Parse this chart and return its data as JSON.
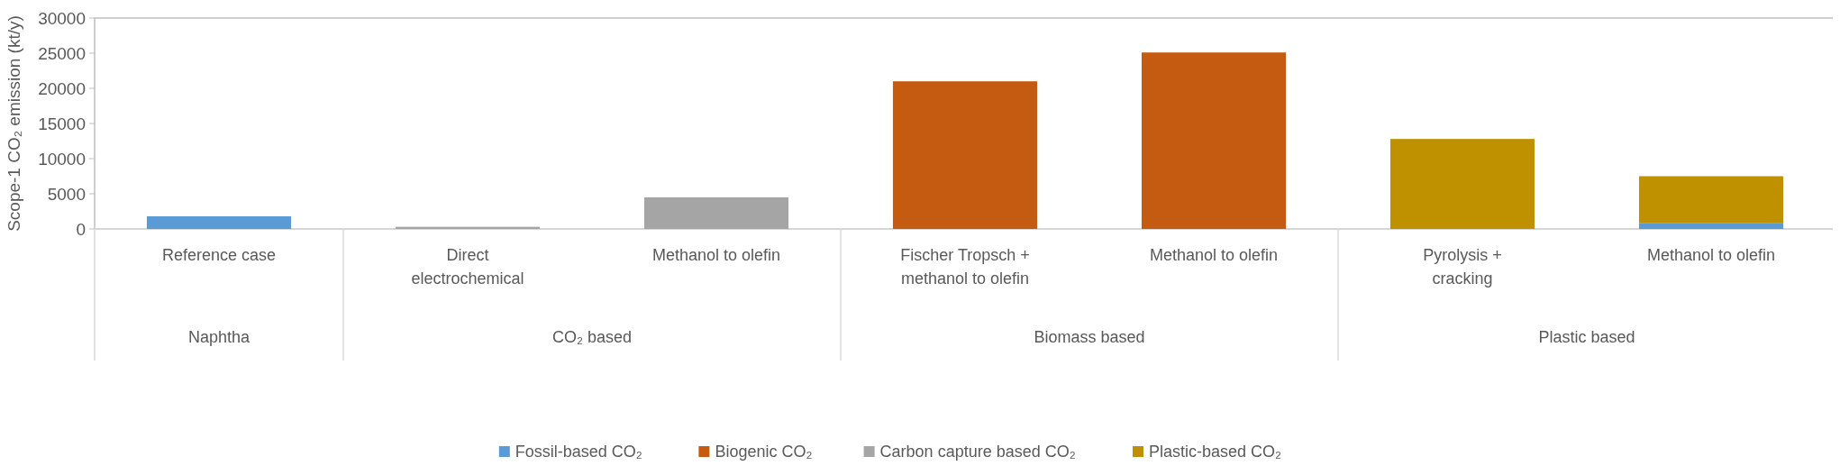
{
  "chart_data": {
    "type": "bar",
    "stacked": true,
    "ylabel": "Scope-1 CO₂ emission (kt/y)",
    "categories": [
      "Reference case",
      "Direct electrochemical",
      "Methanol to olefin",
      "Fischer Tropsch + methanol to olefin",
      "Methanol to olefin",
      "Pyrolysis + cracking",
      "Methanol to olefin"
    ],
    "series": [
      {
        "name": "Fossil-based CO₂",
        "color": "#5b9bd5",
        "values": [
          1800,
          null,
          null,
          null,
          null,
          null,
          800
        ]
      },
      {
        "name": "Biogenic CO₂",
        "color": "#c55a11",
        "values": [
          null,
          null,
          null,
          21000,
          25100,
          null,
          null
        ]
      },
      {
        "name": "Carbon capture based CO₂",
        "color": "#a5a5a5",
        "values": [
          null,
          300,
          4500,
          null,
          null,
          null,
          null
        ]
      },
      {
        "name": "Plastic-based CO₂",
        "color": "#bf9000",
        "values": [
          null,
          null,
          null,
          null,
          null,
          12800,
          6700
        ]
      }
    ],
    "annotations": [
      "Naphtha",
      "CO₂ based",
      "Biomass based",
      "Plastic based"
    ],
    "ylim": [
      0,
      30000
    ],
    "yticks": [
      0,
      5000,
      10000,
      15000,
      20000,
      25000,
      30000
    ],
    "grid": false,
    "legend": "bottom"
  }
}
